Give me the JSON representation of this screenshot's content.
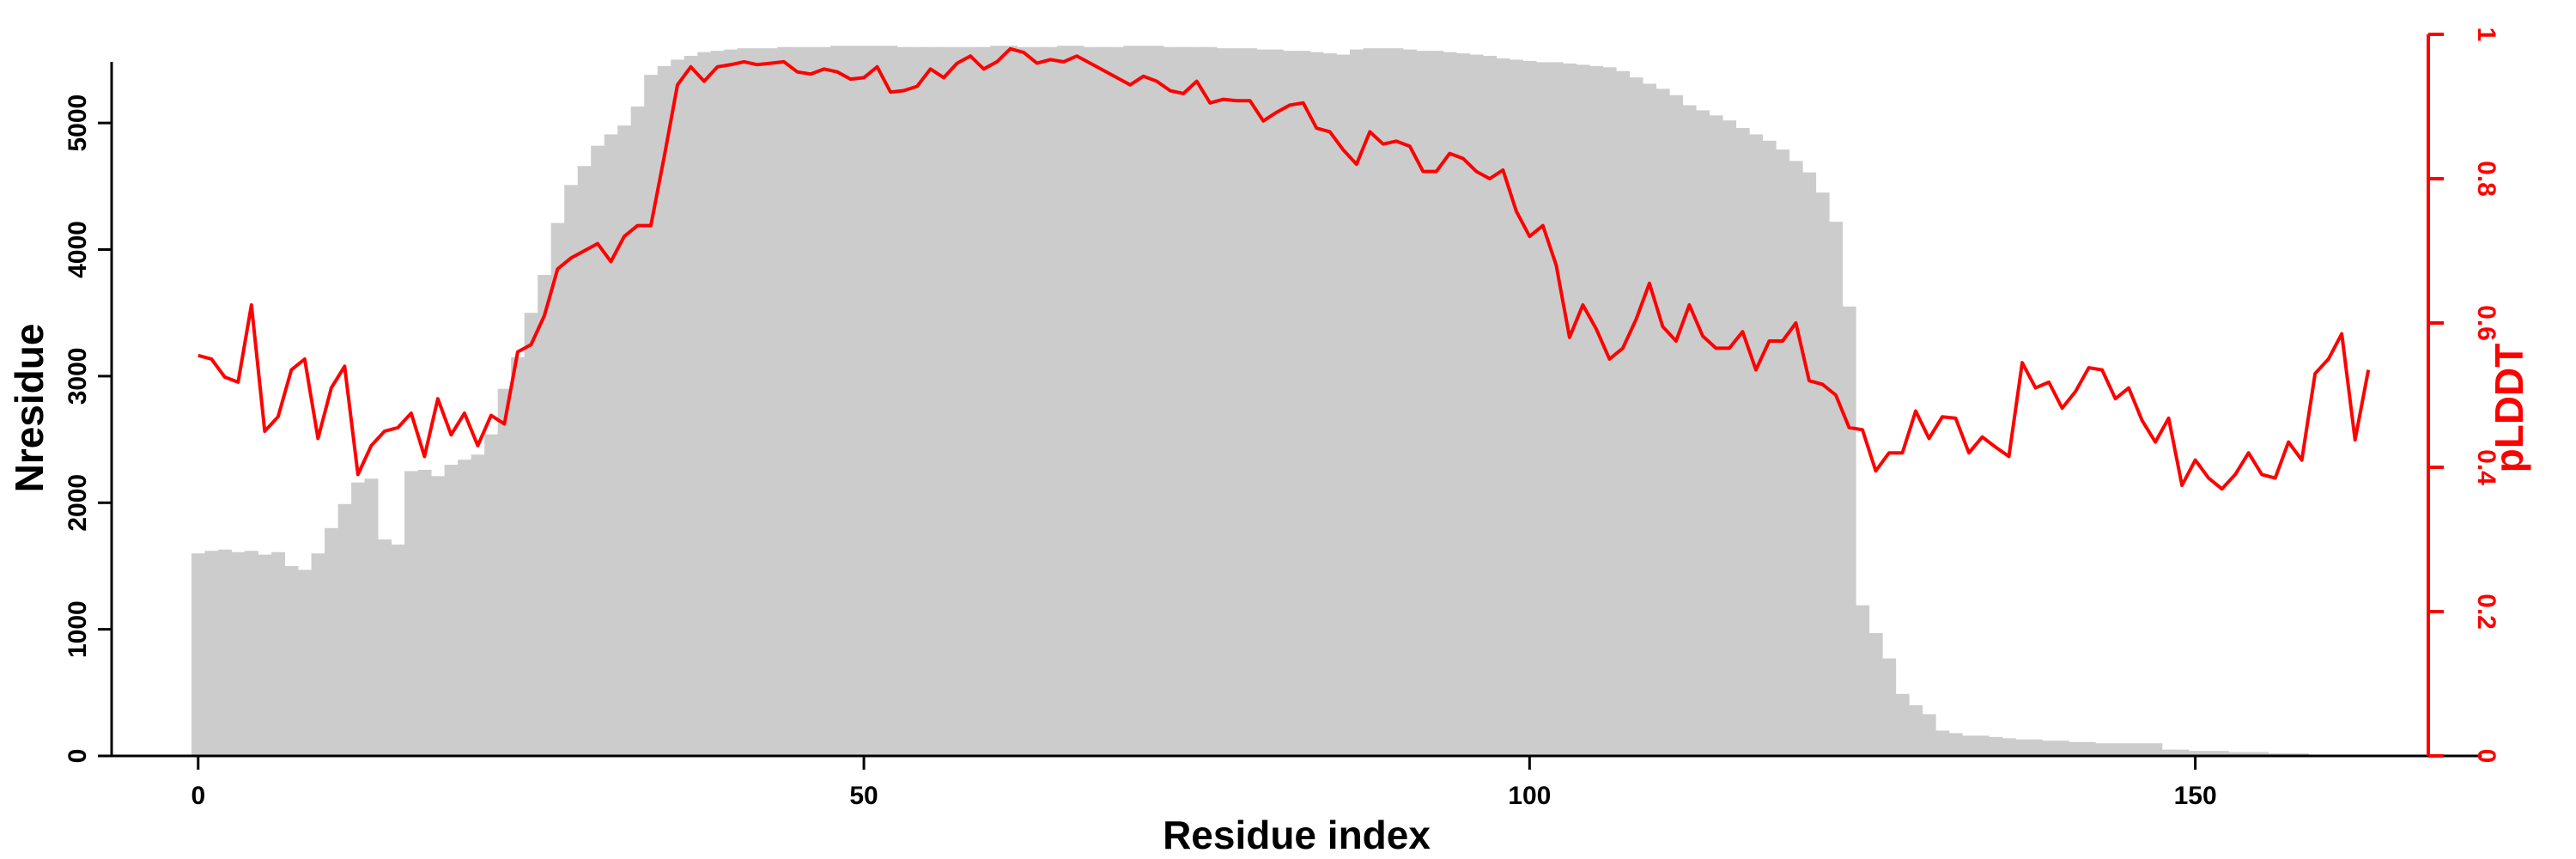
{
  "chart_data": {
    "type": "bar",
    "xlabel": "Residue index",
    "ylabel": "Nresidue",
    "y2label": "pLDDT",
    "xlim": [
      -6.5,
      171.5
    ],
    "ylim": [
      0,
      5700
    ],
    "y2lim": [
      0,
      1
    ],
    "x_ticks": [
      0,
      50,
      100,
      150
    ],
    "y_ticks": [
      0,
      1000,
      2000,
      3000,
      4000,
      5000
    ],
    "y2_ticks": [
      0,
      0.2,
      0.4,
      0.6,
      0.8,
      1
    ],
    "grid": false,
    "legend": "none",
    "colors": {
      "bars": "#cccccc",
      "plddt_line": "#ff0000",
      "axis_left": "#000000",
      "axis_right": "#ff0000"
    },
    "series": [
      {
        "kind": "bar",
        "axis": "left",
        "values": [
          1600,
          1620,
          1630,
          1610,
          1620,
          1590,
          1610,
          1500,
          1470,
          1600,
          1800,
          1990,
          2160,
          2190,
          1710,
          1670,
          2250,
          2260,
          2210,
          2300,
          2340,
          2380,
          2540,
          2900,
          3150,
          3500,
          3800,
          4210,
          4510,
          4660,
          4820,
          4910,
          4980,
          5130,
          5380,
          5450,
          5500,
          5530,
          5560,
          5570,
          5580,
          5590,
          5590,
          5590,
          5600,
          5600,
          5600,
          5600,
          5610,
          5610,
          5610,
          5610,
          5610,
          5600,
          5600,
          5600,
          5600,
          5600,
          5600,
          5600,
          5610,
          5610,
          5600,
          5600,
          5600,
          5610,
          5610,
          5600,
          5600,
          5600,
          5610,
          5610,
          5610,
          5600,
          5600,
          5600,
          5600,
          5590,
          5590,
          5590,
          5580,
          5580,
          5570,
          5570,
          5560,
          5550,
          5540,
          5580,
          5590,
          5590,
          5590,
          5580,
          5570,
          5570,
          5560,
          5550,
          5540,
          5530,
          5510,
          5500,
          5490,
          5480,
          5480,
          5470,
          5460,
          5450,
          5440,
          5410,
          5360,
          5310,
          5270,
          5220,
          5140,
          5100,
          5060,
          5020,
          4960,
          4910,
          4860,
          4790,
          4700,
          4610,
          4450,
          4220,
          3550,
          1190,
          970,
          770,
          490,
          400,
          330,
          200,
          180,
          160,
          160,
          150,
          140,
          130,
          130,
          120,
          120,
          110,
          110,
          100,
          100,
          100,
          100,
          100,
          50,
          50,
          40,
          40,
          40,
          30,
          30,
          30,
          20,
          20,
          20,
          10,
          10,
          10,
          10,
          0
        ]
      },
      {
        "kind": "line",
        "name": "pLDDT",
        "axis": "right",
        "values": [
          0.555,
          0.55,
          0.525,
          0.518,
          0.625,
          0.45,
          0.47,
          0.535,
          0.55,
          0.44,
          0.51,
          0.54,
          0.39,
          0.43,
          0.45,
          0.455,
          0.475,
          0.415,
          0.495,
          0.445,
          0.475,
          0.43,
          0.472,
          0.46,
          0.56,
          0.57,
          0.61,
          0.675,
          0.69,
          0.7,
          0.71,
          0.685,
          0.72,
          0.735,
          0.735,
          0.83,
          0.93,
          0.955,
          0.935,
          0.955,
          0.958,
          0.962,
          0.958,
          0.96,
          0.962,
          0.948,
          0.945,
          0.952,
          0.948,
          0.938,
          0.94,
          0.955,
          0.92,
          0.922,
          0.928,
          0.952,
          0.94,
          0.96,
          0.97,
          0.952,
          0.962,
          0.98,
          0.975,
          0.96,
          0.965,
          0.962,
          0.97,
          0.96,
          0.95,
          0.94,
          0.93,
          0.942,
          0.935,
          0.922,
          0.918,
          0.935,
          0.905,
          0.91,
          0.908,
          0.908,
          0.88,
          0.892,
          0.902,
          0.905,
          0.87,
          0.865,
          0.84,
          0.82,
          0.865,
          0.848,
          0.852,
          0.845,
          0.81,
          0.81,
          0.835,
          0.828,
          0.81,
          0.8,
          0.812,
          0.755,
          0.72,
          0.735,
          0.68,
          0.58,
          0.625,
          0.592,
          0.55,
          0.565,
          0.605,
          0.655,
          0.595,
          0.575,
          0.625,
          0.582,
          0.565,
          0.565,
          0.588,
          0.535,
          0.575,
          0.575,
          0.6,
          0.52,
          0.515,
          0.5,
          0.455,
          0.452,
          0.395,
          0.42,
          0.42,
          0.478,
          0.44,
          0.47,
          0.468,
          0.42,
          0.442,
          0.428,
          0.415,
          0.545,
          0.51,
          0.518,
          0.482,
          0.505,
          0.538,
          0.535,
          0.495,
          0.51,
          0.465,
          0.435,
          0.468,
          0.375,
          0.41,
          0.385,
          0.37,
          0.39,
          0.42,
          0.39,
          0.385,
          0.435,
          0.41,
          0.53,
          0.55,
          0.585,
          0.438,
          0.535
        ]
      }
    ]
  }
}
